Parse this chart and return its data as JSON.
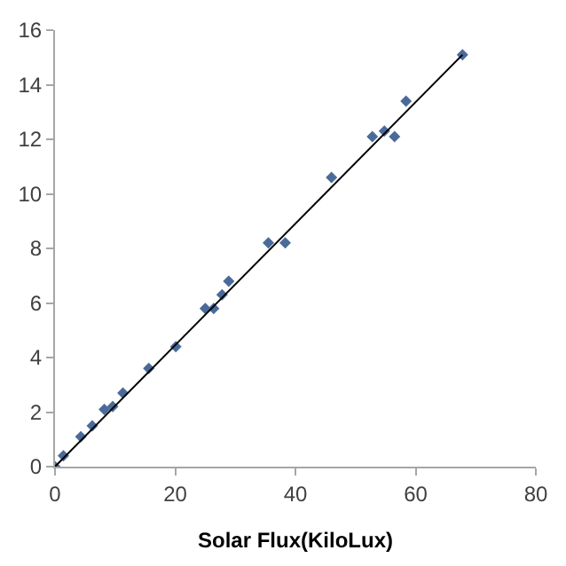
{
  "chart_data": {
    "type": "scatter",
    "xlabel": "Solar Flux(KiloLux)",
    "xlim": [
      0,
      80
    ],
    "ylim": [
      0,
      16
    ],
    "xticks": [
      0,
      20,
      40,
      60,
      80
    ],
    "yticks": [
      0,
      2,
      4,
      6,
      8,
      10,
      12,
      14,
      16
    ],
    "grid": false,
    "marker": "diamond",
    "series": [
      {
        "color": "#4a6b9a",
        "x": [
          0,
          1.4,
          4.3,
          6.2,
          8.2,
          9.6,
          11.3,
          15.6,
          20.1,
          25,
          26.4,
          27.8,
          28.9,
          35.5,
          38.3,
          46,
          52.8,
          54.8,
          56.5,
          58.4,
          67.8
        ],
        "values": [
          0,
          0.4,
          1.1,
          1.5,
          2.1,
          2.2,
          2.7,
          3.6,
          4.4,
          5.8,
          5.8,
          6.3,
          6.8,
          8.2,
          8.2,
          10.6,
          12.1,
          12.3,
          12.1,
          13.4,
          15.1
        ]
      },
      {
        "type": "line",
        "marker": "none",
        "color": "#000000",
        "x": [
          0,
          67.8
        ],
        "values": [
          0,
          15.1
        ]
      }
    ]
  }
}
